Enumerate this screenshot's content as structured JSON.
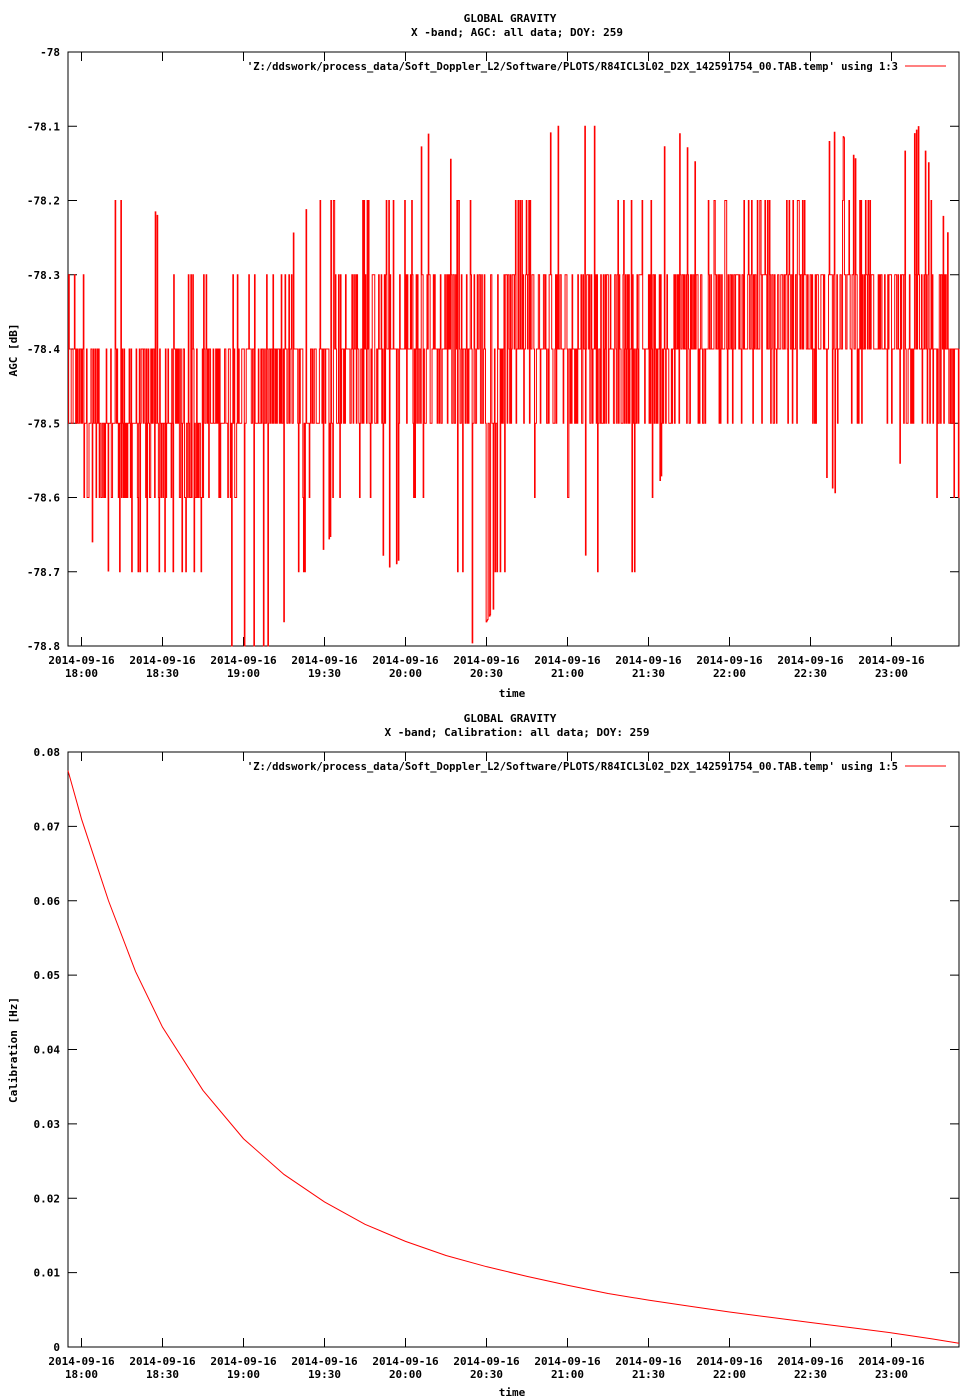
{
  "colors": {
    "series": "#ff0000",
    "axis": "#000000",
    "background": "#ffffff"
  },
  "chart_data": [
    {
      "type": "line",
      "title": "GLOBAL GRAVITY",
      "subtitle": "X -band; AGC: all data; DOY: 259",
      "xlabel": "time",
      "ylabel": "AGC [dB]",
      "x_date_labels": [
        "2014-09-16",
        "2014-09-16",
        "2014-09-16",
        "2014-09-16",
        "2014-09-16",
        "2014-09-16",
        "2014-09-16",
        "2014-09-16",
        "2014-09-16",
        "2014-09-16",
        "2014-09-16"
      ],
      "x_time_labels": [
        "18:00",
        "18:30",
        "19:00",
        "19:30",
        "20:00",
        "20:30",
        "21:00",
        "21:30",
        "22:00",
        "22:30",
        "23:00"
      ],
      "xlim": [
        "2014-09-16 17:55",
        "2014-09-16 23:25"
      ],
      "ylim": [
        -78.8,
        -78.0
      ],
      "y_ticks": [
        "-78",
        "-78.1",
        "-78.2",
        "-78.3",
        "-78.4",
        "-78.5",
        "-78.6",
        "-78.7",
        "-78.8"
      ],
      "legend_position": "top-right",
      "grid": false,
      "series": [
        {
          "name": "'Z:/ddswork/process_data/Soft_Doppler_L2/Software/PLOTS/R84ICL3L02_D2X_142591754_00.TAB.temp' using 1:3",
          "x": [
            "2014-09-16 17:55",
            "2014-09-16 18:10",
            "2014-09-16 18:25",
            "2014-09-16 18:40",
            "2014-09-16 18:55",
            "2014-09-16 19:10",
            "2014-09-16 19:25",
            "2014-09-16 19:40",
            "2014-09-16 19:55",
            "2014-09-16 20:10",
            "2014-09-16 20:25",
            "2014-09-16 20:40",
            "2014-09-16 20:55",
            "2014-09-16 21:10",
            "2014-09-16 21:25",
            "2014-09-16 21:40",
            "2014-09-16 21:55",
            "2014-09-16 22:10",
            "2014-09-16 22:25",
            "2014-09-16 22:40",
            "2014-09-16 22:55",
            "2014-09-16 23:10",
            "2014-09-16 23:25"
          ],
          "y": [
            -78.45,
            -78.5,
            -78.5,
            -78.5,
            -78.45,
            -78.45,
            -78.45,
            -78.4,
            -78.4,
            -78.4,
            -78.4,
            -78.4,
            -78.4,
            -78.4,
            -78.4,
            -78.4,
            -78.35,
            -78.35,
            -78.35,
            -78.35,
            -78.35,
            -78.4,
            -78.45
          ],
          "y_min": [
            -78.6,
            -78.7,
            -78.7,
            -78.7,
            -78.8,
            -78.8,
            -78.7,
            -78.6,
            -78.7,
            -78.6,
            -78.8,
            -78.7,
            -78.6,
            -78.7,
            -78.7,
            -78.5,
            -78.5,
            -78.5,
            -78.5,
            -78.6,
            -78.5,
            -78.6,
            -78.6
          ],
          "y_max": [
            -78.3,
            -78.2,
            -78.2,
            -78.3,
            -78.3,
            -78.3,
            -78.2,
            -78.2,
            -78.2,
            -78.1,
            -78.2,
            -78.2,
            -78.1,
            -78.1,
            -78.2,
            -78.1,
            -78.2,
            -78.2,
            -78.2,
            -78.1,
            -78.2,
            -78.1,
            -78.3
          ]
        }
      ]
    },
    {
      "type": "line",
      "title": "GLOBAL GRAVITY",
      "subtitle": "X -band; Calibration: all data; DOY: 259",
      "xlabel": "time",
      "ylabel": "Calibration [Hz]",
      "x_date_labels": [
        "2014-09-16",
        "2014-09-16",
        "2014-09-16",
        "2014-09-16",
        "2014-09-16",
        "2014-09-16",
        "2014-09-16",
        "2014-09-16",
        "2014-09-16",
        "2014-09-16",
        "2014-09-16"
      ],
      "x_time_labels": [
        "18:00",
        "18:30",
        "19:00",
        "19:30",
        "20:00",
        "20:30",
        "21:00",
        "21:30",
        "22:00",
        "22:30",
        "23:00"
      ],
      "xlim": [
        "2014-09-16 17:55",
        "2014-09-16 23:25"
      ],
      "ylim": [
        0,
        0.08
      ],
      "y_ticks": [
        "0.08",
        "0.07",
        "0.06",
        "0.05",
        "0.04",
        "0.03",
        "0.02",
        "0.01",
        "0"
      ],
      "legend_position": "top-right",
      "grid": false,
      "series": [
        {
          "name": "'Z:/ddswork/process_data/Soft_Doppler_L2/Software/PLOTS/R84ICL3L02_D2X_142591754_00.TAB.temp' using 1:5",
          "x": [
            "2014-09-16 17:55",
            "2014-09-16 18:00",
            "2014-09-16 18:10",
            "2014-09-16 18:20",
            "2014-09-16 18:30",
            "2014-09-16 18:45",
            "2014-09-16 19:00",
            "2014-09-16 19:15",
            "2014-09-16 19:30",
            "2014-09-16 19:45",
            "2014-09-16 20:00",
            "2014-09-16 20:15",
            "2014-09-16 20:30",
            "2014-09-16 20:45",
            "2014-09-16 21:00",
            "2014-09-16 21:15",
            "2014-09-16 21:30",
            "2014-09-16 21:45",
            "2014-09-16 22:00",
            "2014-09-16 22:15",
            "2014-09-16 22:30",
            "2014-09-16 22:45",
            "2014-09-16 23:00",
            "2014-09-16 23:15",
            "2014-09-16 23:25"
          ],
          "y": [
            0.0775,
            0.071,
            0.06,
            0.0505,
            0.043,
            0.0345,
            0.028,
            0.0232,
            0.0195,
            0.0165,
            0.0142,
            0.0123,
            0.0108,
            0.0095,
            0.0083,
            0.0072,
            0.0063,
            0.0055,
            0.0047,
            0.004,
            0.0033,
            0.0026,
            0.0019,
            0.0011,
            0.0005
          ]
        }
      ]
    }
  ]
}
